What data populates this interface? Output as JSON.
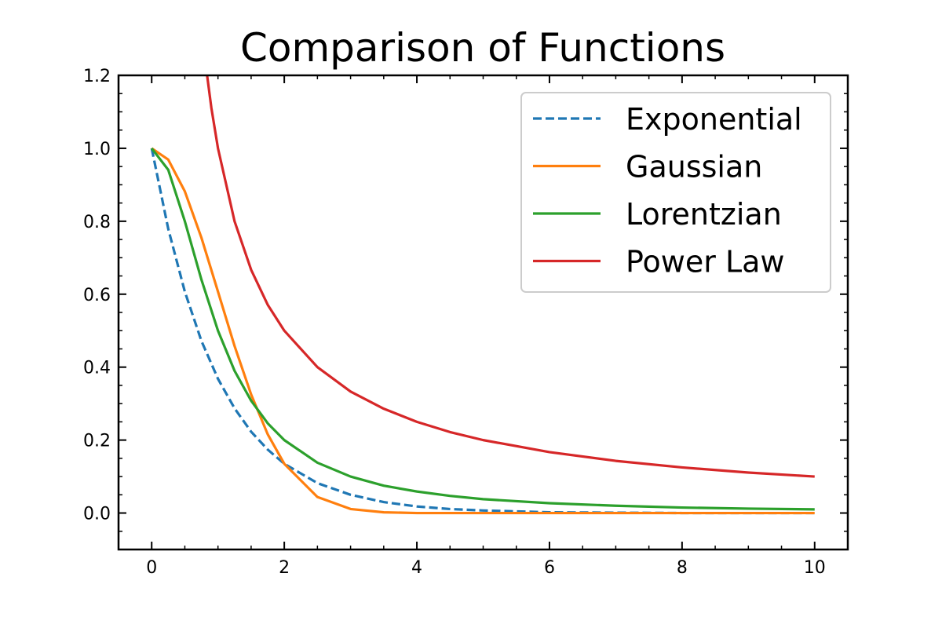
{
  "chart_data": {
    "type": "line",
    "title": "Comparison of Functions",
    "xlabel": "",
    "ylabel": "",
    "xlim": [
      -0.5,
      10.5
    ],
    "ylim": [
      -0.1,
      1.2
    ],
    "x_ticks": [
      0,
      2,
      4,
      6,
      8,
      10
    ],
    "x_tick_labels": [
      "0",
      "2",
      "4",
      "6",
      "8",
      "10"
    ],
    "y_ticks": [
      0.0,
      0.2,
      0.4,
      0.6,
      0.8,
      1.0,
      1.2
    ],
    "y_tick_labels": [
      "0.0",
      "0.2",
      "0.4",
      "0.6",
      "0.8",
      "1.0",
      "1.2"
    ],
    "grid": false,
    "legend_position": "top-right",
    "x": [
      0,
      0.25,
      0.5,
      0.75,
      1,
      1.25,
      1.5,
      1.75,
      2,
      2.5,
      3,
      3.5,
      4,
      4.5,
      5,
      6,
      7,
      8,
      9,
      10
    ],
    "series": [
      {
        "name": "Exponential",
        "color": "#1f77b4",
        "style": "dashed",
        "x": [
          0,
          0.25,
          0.5,
          0.75,
          1,
          1.25,
          1.5,
          1.75,
          2,
          2.5,
          3,
          3.5,
          4,
          4.5,
          5,
          6,
          7,
          8,
          9,
          10
        ],
        "values": [
          1.0,
          0.779,
          0.607,
          0.472,
          0.368,
          0.287,
          0.223,
          0.174,
          0.135,
          0.082,
          0.05,
          0.03,
          0.018,
          0.011,
          0.007,
          0.002,
          0.001,
          0.0,
          0.0,
          0.0
        ]
      },
      {
        "name": "Gaussian",
        "color": "#ff7f0e",
        "style": "solid",
        "x": [
          0,
          0.25,
          0.5,
          0.75,
          1,
          1.25,
          1.5,
          1.75,
          2,
          2.5,
          3,
          3.5,
          4,
          4.5,
          5,
          6,
          7,
          8,
          9,
          10
        ],
        "values": [
          1.0,
          0.969,
          0.882,
          0.755,
          0.607,
          0.458,
          0.325,
          0.216,
          0.135,
          0.044,
          0.011,
          0.002,
          0.0,
          0.0,
          0.0,
          0.0,
          0.0,
          0.0,
          0.0,
          0.0
        ]
      },
      {
        "name": "Lorentzian",
        "color": "#2ca02c",
        "style": "solid",
        "x": [
          0,
          0.25,
          0.5,
          0.75,
          1,
          1.25,
          1.5,
          1.75,
          2,
          2.5,
          3,
          3.5,
          4,
          4.5,
          5,
          6,
          7,
          8,
          9,
          10
        ],
        "values": [
          1.0,
          0.941,
          0.8,
          0.64,
          0.5,
          0.39,
          0.308,
          0.246,
          0.2,
          0.138,
          0.1,
          0.075,
          0.059,
          0.047,
          0.038,
          0.027,
          0.02,
          0.015,
          0.012,
          0.01
        ]
      },
      {
        "name": "Power Law",
        "color": "#d62728",
        "style": "solid",
        "x": [
          0.8,
          0.9,
          1,
          1.25,
          1.5,
          1.75,
          2,
          2.5,
          3,
          3.5,
          4,
          4.5,
          5,
          6,
          7,
          8,
          9,
          10
        ],
        "values": [
          1.25,
          1.111,
          1.0,
          0.8,
          0.667,
          0.571,
          0.5,
          0.4,
          0.333,
          0.286,
          0.25,
          0.222,
          0.2,
          0.167,
          0.143,
          0.125,
          0.111,
          0.1
        ]
      }
    ]
  }
}
